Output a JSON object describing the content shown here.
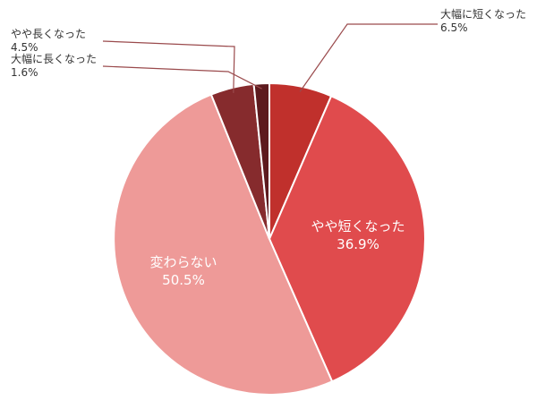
{
  "chart_data": {
    "type": "pie",
    "start": "top",
    "direction": "clockwise",
    "slices": [
      {
        "label": "大幅に短くなった",
        "value": 6.5,
        "value_text": "6.5%",
        "color": "#c0302c",
        "label_pos": "outside-right"
      },
      {
        "label": "やや短くなった",
        "value": 36.9,
        "value_text": "36.9%",
        "color": "#e04b4d",
        "label_pos": "inside"
      },
      {
        "label": "変わらない",
        "value": 50.5,
        "value_text": "50.5%",
        "color": "#ee9a98",
        "label_pos": "inside"
      },
      {
        "label": "やや長くなった",
        "value": 4.5,
        "value_text": "4.5%",
        "color": "#862b2d",
        "label_pos": "outside-left"
      },
      {
        "label": "大幅に長くなった",
        "value": 1.6,
        "value_text": "1.6%",
        "color": "#5d1a1e",
        "label_pos": "outside-left"
      }
    ],
    "leader_line_color": "#9a4a4c"
  }
}
